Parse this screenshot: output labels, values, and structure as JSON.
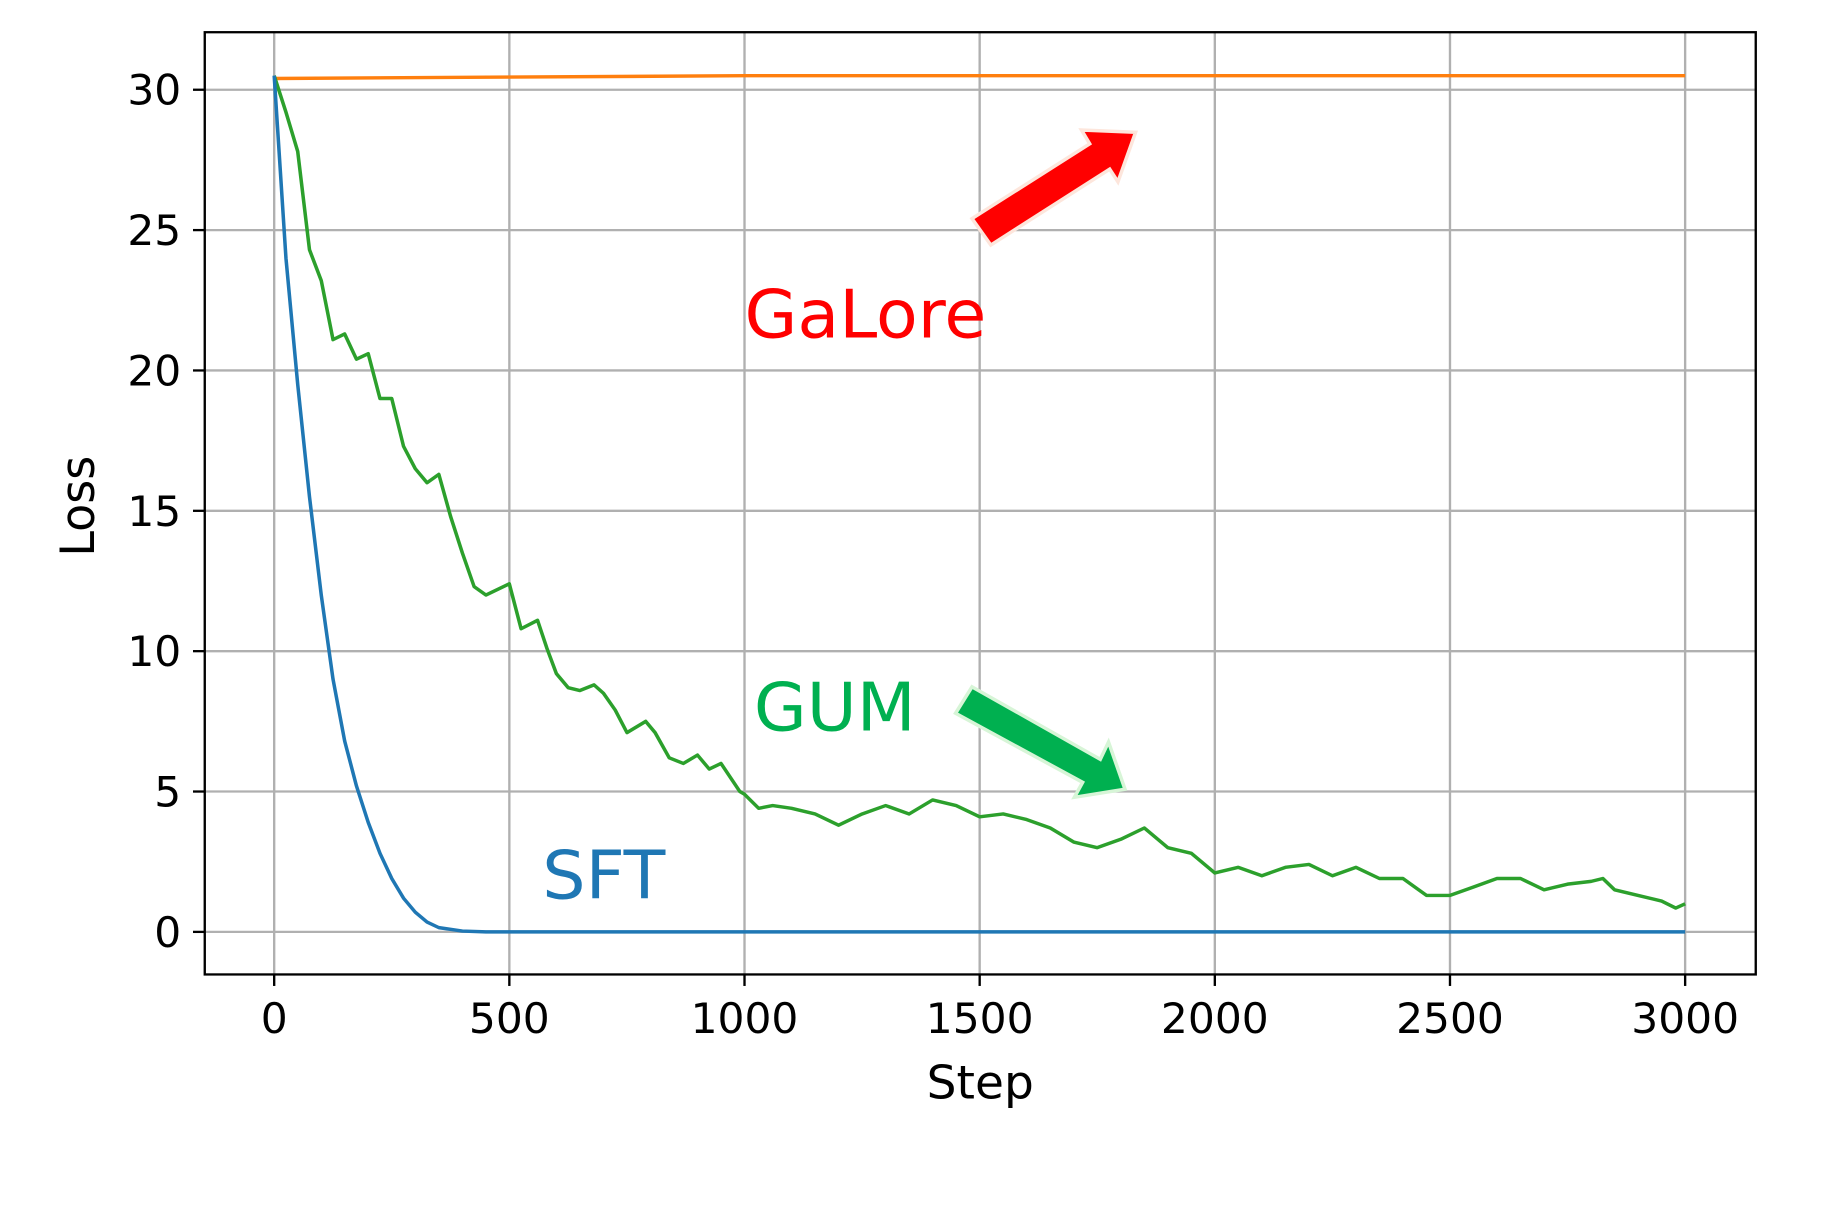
{
  "chart_data": {
    "type": "line",
    "title": "",
    "xlabel": "Step",
    "ylabel": "Loss",
    "xlim": [
      -150,
      3150
    ],
    "ylim": [
      -1.5,
      32
    ],
    "grid": true,
    "xticks": [
      0,
      500,
      1000,
      1500,
      2000,
      2500,
      3000
    ],
    "xtick_labels": [
      "0",
      "500",
      "1000",
      "1500",
      "2000",
      "2500",
      "3000"
    ],
    "yticks": [
      0,
      5,
      10,
      15,
      20,
      25,
      30
    ],
    "ytick_labels": [
      "0",
      "5",
      "10",
      "15",
      "20",
      "25",
      "30"
    ],
    "series": [
      {
        "name": "GaLore",
        "color": "#ff7f0e",
        "x": [
          0,
          500,
          1000,
          2000,
          3000
        ],
        "y": [
          30.4,
          30.45,
          30.5,
          30.5,
          30.5
        ]
      },
      {
        "name": "GUM",
        "color": "#2ca02c",
        "x": [
          0,
          25,
          50,
          75,
          100,
          125,
          150,
          175,
          200,
          225,
          250,
          275,
          300,
          325,
          350,
          375,
          400,
          425,
          450,
          500,
          525,
          560,
          580,
          600,
          625,
          650,
          680,
          700,
          725,
          750,
          790,
          810,
          840,
          870,
          900,
          925,
          950,
          990,
          1000,
          1030,
          1060,
          1100,
          1150,
          1200,
          1250,
          1300,
          1350,
          1400,
          1450,
          1500,
          1550,
          1600,
          1650,
          1700,
          1750,
          1800,
          1850,
          1900,
          1950,
          2000,
          2050,
          2100,
          2150,
          2200,
          2250,
          2300,
          2350,
          2400,
          2450,
          2500,
          2550,
          2600,
          2650,
          2700,
          2750,
          2800,
          2825,
          2850,
          2900,
          2950,
          2980,
          3000
        ],
        "y": [
          30.5,
          29.2,
          27.8,
          24.3,
          23.2,
          21.1,
          21.3,
          20.4,
          20.6,
          19.0,
          19.0,
          17.3,
          16.5,
          16.0,
          16.3,
          14.8,
          13.5,
          12.3,
          12.0,
          12.4,
          10.8,
          11.1,
          10.1,
          9.2,
          8.7,
          8.6,
          8.8,
          8.5,
          7.9,
          7.1,
          7.5,
          7.1,
          6.2,
          6.0,
          6.3,
          5.8,
          6.0,
          5.0,
          4.9,
          4.4,
          4.5,
          4.4,
          4.2,
          3.8,
          4.2,
          4.5,
          4.2,
          4.7,
          4.5,
          4.1,
          4.2,
          4.0,
          3.7,
          3.2,
          3.0,
          3.3,
          3.7,
          3.0,
          2.8,
          2.1,
          2.3,
          2.0,
          2.3,
          2.4,
          2.0,
          2.3,
          1.9,
          1.9,
          1.3,
          1.3,
          1.6,
          1.9,
          1.9,
          1.5,
          1.7,
          1.8,
          1.9,
          1.5,
          1.3,
          1.1,
          0.85,
          1.0
        ]
      },
      {
        "name": "SFT",
        "color": "#1f77b4",
        "x": [
          0,
          25,
          50,
          75,
          100,
          125,
          150,
          175,
          200,
          225,
          250,
          275,
          300,
          325,
          350,
          400,
          450,
          600,
          1000,
          1500,
          2000,
          2500,
          3000
        ],
        "y": [
          30.5,
          24,
          19.5,
          15.5,
          12,
          9,
          6.8,
          5.2,
          3.9,
          2.8,
          1.9,
          1.2,
          0.7,
          0.35,
          0.15,
          0.03,
          0,
          0,
          0,
          0,
          0,
          0,
          0
        ]
      }
    ],
    "annotations": [
      {
        "text": "GaLore",
        "color": "#ff0000",
        "x": 1000,
        "y": 22
      },
      {
        "text": "GUM",
        "color": "#00b050",
        "x": 1020,
        "y": 8
      },
      {
        "text": "SFT",
        "color": "#1f77b4",
        "x": 570,
        "y": 2
      }
    ]
  }
}
